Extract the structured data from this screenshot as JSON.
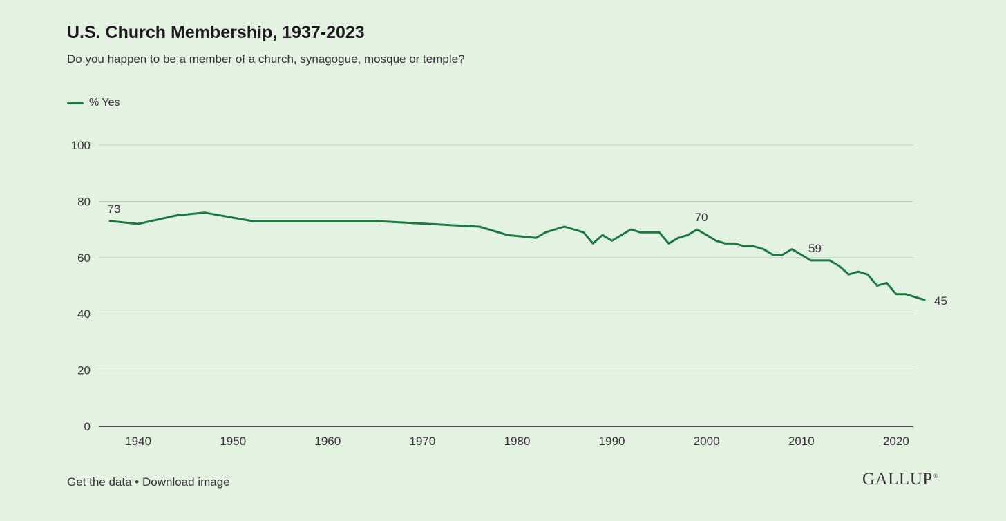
{
  "header": {
    "title": "U.S. Church Membership, 1937-2023",
    "subtitle": "Do you happen to be a member of a church, synagogue, mosque or temple?"
  },
  "legend": {
    "label": "% Yes",
    "color": "#1a7a44"
  },
  "footer": {
    "get_data": "Get the data",
    "separator": " • ",
    "download": "Download image",
    "logo": "GALLUP",
    "logo_mark": "®"
  },
  "chart_data": {
    "type": "line",
    "title": "U.S. Church Membership, 1937-2023",
    "xlabel": "",
    "ylabel": "",
    "xlim": [
      1937,
      2023
    ],
    "ylim": [
      0,
      100
    ],
    "yticks": [
      0,
      20,
      40,
      60,
      80,
      100
    ],
    "xticks": [
      1940,
      1950,
      1960,
      1970,
      1980,
      1990,
      2000,
      2010,
      2020
    ],
    "grid": true,
    "series": [
      {
        "name": "% Yes",
        "color": "#1a7a44",
        "x": [
          1937,
          1940,
          1944,
          1947,
          1952,
          1965,
          1976,
          1979,
          1982,
          1983,
          1985,
          1987,
          1988,
          1989,
          1990,
          1992,
          1993,
          1994,
          1995,
          1996,
          1997,
          1998,
          1999,
          2000,
          2001,
          2002,
          2003,
          2004,
          2005,
          2006,
          2007,
          2008,
          2009,
          2010,
          2011,
          2012,
          2013,
          2014,
          2015,
          2016,
          2017,
          2018,
          2019,
          2020,
          2021,
          2023
        ],
        "values": [
          73,
          72,
          75,
          76,
          73,
          73,
          71,
          68,
          67,
          69,
          71,
          69,
          65,
          68,
          66,
          70,
          69,
          69,
          69,
          65,
          67,
          68,
          70,
          68,
          66,
          65,
          65,
          64,
          64,
          63,
          61,
          61,
          63,
          61,
          59,
          59,
          59,
          57,
          54,
          55,
          54,
          50,
          51,
          47,
          47,
          45
        ]
      }
    ],
    "annotations": [
      {
        "x": 1937,
        "y": 73,
        "text": "73",
        "position": "above"
      },
      {
        "x": 1999,
        "y": 70,
        "text": "70",
        "position": "above"
      },
      {
        "x": 2011,
        "y": 59,
        "text": "59",
        "position": "above"
      },
      {
        "x": 2023,
        "y": 45,
        "text": "45",
        "position": "right"
      }
    ]
  }
}
